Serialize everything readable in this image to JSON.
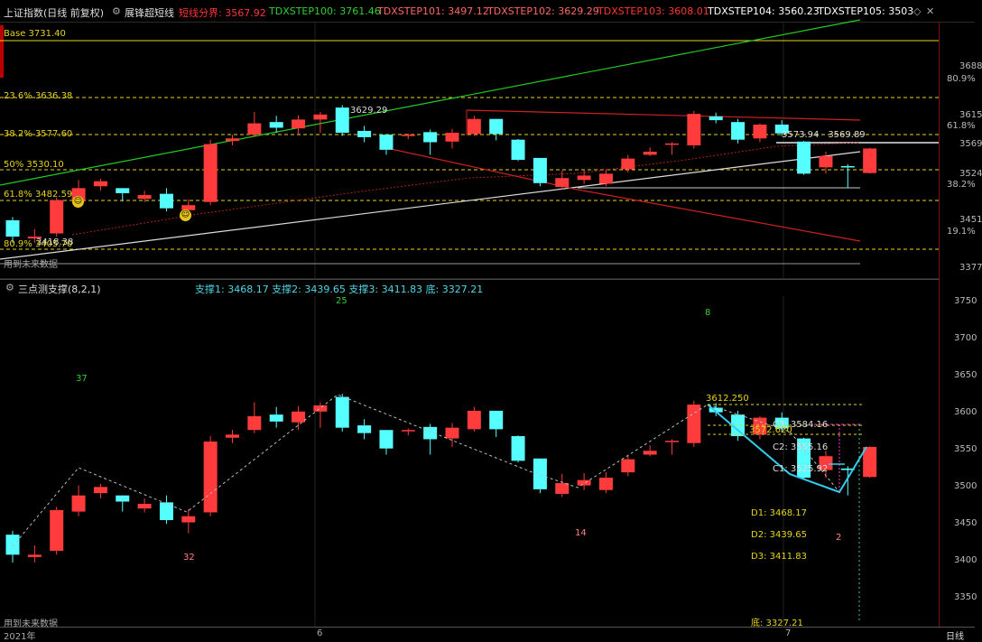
{
  "header": {
    "instrument": "上证指数(日线 前复权)",
    "indicator_name": "展锋超短线",
    "items": [
      {
        "label": "短线分界: 3567.92",
        "color": "#ff3333"
      },
      {
        "label": "TDXSTEP100: 3761.46",
        "color": "#33cc33"
      },
      {
        "label": "TDXSTEP101: 3497.12",
        "color": "#ff6666"
      },
      {
        "label": "TDXSTEP102: 3629.29",
        "color": "#ff6666"
      },
      {
        "label": "TDXSTEP103: 3608.01",
        "color": "#ff3333"
      },
      {
        "label": "TDXSTEP104: 3560.23",
        "color": "#ffffff"
      },
      {
        "label": "TDXSTEP105: 3503",
        "color": "#ffffff"
      }
    ]
  },
  "pane1": {
    "base_label": "Base 3731.40",
    "fib": [
      {
        "label": "23.6% 3636.38"
      },
      {
        "label": "38.2% 3577.60"
      },
      {
        "label": "50% 3530.10"
      },
      {
        "label": "61.8% 3482.59"
      },
      {
        "label": "80.9% 3405.70"
      }
    ],
    "annotations": {
      "high": "3629.29",
      "range": "3573.94 - 3569.89",
      "low": "3418.38",
      "future": "用到未来数据"
    },
    "scale": [
      "3688",
      "80.9%",
      "3615",
      "61.8%",
      "3569",
      "3524",
      "38.2%",
      "3451",
      "19.1%",
      "3377"
    ]
  },
  "pane2": {
    "title": "三点测支撑(8,2,1)",
    "supports": "支撑1: 3468.17  支撑2: 3439.65  支撑3: 3411.83  底: 3327.21",
    "counts": [
      "25",
      "8",
      "37",
      "32",
      "14",
      "2"
    ],
    "peak": "3612.250",
    "c3": "C3: 3584.16",
    "peak2": "3572.620",
    "c2": "C2: 3555.16",
    "c1": "C1: 3525.92",
    "d1": "D1: 3468.17",
    "d2": "D2: 3439.65",
    "d3": "D3: 3411.83",
    "bottom": "底: 3327.21",
    "future": "用到未来数据",
    "scale": [
      "3750",
      "3700",
      "3650",
      "3600",
      "3550",
      "3500",
      "3450",
      "3400",
      "3350"
    ]
  },
  "footer": {
    "year": "2021年",
    "m6": "6",
    "m7": "7",
    "period": "日线"
  },
  "colors": {
    "up": "#ff3b3b",
    "down": "#55ffff",
    "gold": "#e6d31a"
  },
  "candles": [
    [
      3446,
      3420,
      3451,
      3410
    ],
    [
      3417,
      3420,
      3432,
      3410
    ],
    [
      3425,
      3478,
      3482,
      3420
    ],
    [
      3476,
      3497,
      3510,
      3470
    ],
    [
      3500,
      3508,
      3512,
      3493
    ],
    [
      3497,
      3489,
      3497,
      3476
    ],
    [
      3480,
      3486,
      3493,
      3475
    ],
    [
      3488,
      3465,
      3497,
      3460
    ],
    [
      3462,
      3470,
      3479,
      3448
    ],
    [
      3475,
      3567,
      3574,
      3470
    ],
    [
      3572,
      3576,
      3582,
      3565
    ],
    [
      3582,
      3600,
      3618,
      3578
    ],
    [
      3602,
      3593,
      3612,
      3585
    ],
    [
      3592,
      3606,
      3613,
      3582
    ],
    [
      3606,
      3614,
      3618,
      3585
    ],
    [
      3625,
      3585,
      3629,
      3580
    ],
    [
      3588,
      3578,
      3596,
      3570
    ],
    [
      3582,
      3558,
      3582,
      3550
    ],
    [
      3582,
      3582,
      3584,
      3575
    ],
    [
      3586,
      3570,
      3590,
      3550
    ],
    [
      3571,
      3585,
      3591,
      3560
    ],
    [
      3583,
      3607,
      3612,
      3580
    ],
    [
      3607,
      3583,
      3607,
      3573
    ],
    [
      3574,
      3542,
      3575,
      3540
    ],
    [
      3545,
      3505,
      3545,
      3500
    ],
    [
      3499,
      3513,
      3525,
      3495
    ],
    [
      3510,
      3517,
      3526,
      3504
    ],
    [
      3504,
      3520,
      3527,
      3500
    ],
    [
      3527,
      3544,
      3550,
      3522
    ],
    [
      3550,
      3555,
      3562,
      3548
    ],
    [
      3567,
      3568,
      3570,
      3550
    ],
    [
      3565,
      3615,
      3620,
      3560
    ],
    [
      3611,
      3605,
      3617,
      3600
    ],
    [
      3602,
      3574,
      3607,
      3568
    ],
    [
      3576,
      3598,
      3600,
      3570
    ],
    [
      3598,
      3584,
      3605,
      3580
    ],
    [
      3571,
      3520,
      3572,
      3518
    ],
    [
      3530,
      3548,
      3555,
      3520
    ],
    [
      3532,
      3530,
      3535,
      3497
    ],
    [
      3521,
      3560,
      3561,
      3520
    ]
  ]
}
